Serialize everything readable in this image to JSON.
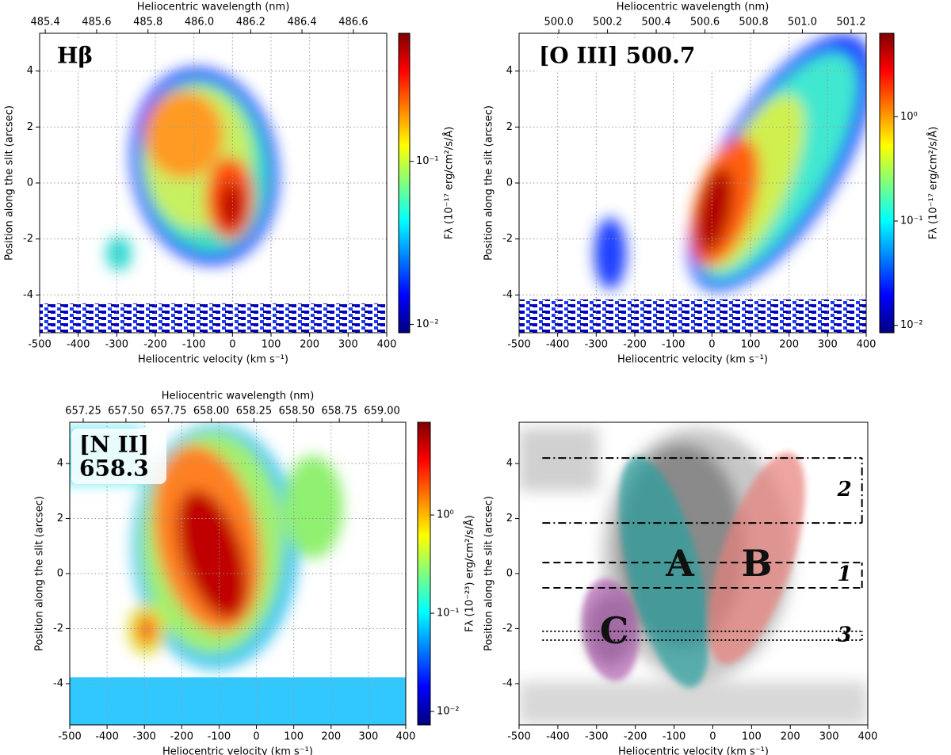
{
  "chart_data": [
    {
      "type": "heatmap",
      "annotation": [
        "Hβ"
      ],
      "xlabel": "Heliocentric velocity (km s⁻¹)",
      "ylabel": "Position along the slit (arcsec)",
      "xlim": [
        -500,
        400
      ],
      "xticks": [
        -500,
        -400,
        -300,
        -200,
        -100,
        0,
        100,
        200,
        300,
        400
      ],
      "ylim": [
        -5.35,
        5.35
      ],
      "yticks": [
        -4,
        -2,
        0,
        2,
        4
      ],
      "x2label": "Heliocentric wavelength (nm)",
      "x2lim": [
        485.378,
        486.73
      ],
      "x2ticks": [
        485.4,
        485.6,
        485.8,
        {
          "value": 486.0,
          "label": "486.0"
        },
        486.2,
        486.4,
        486.6
      ],
      "grid": true,
      "colorbar": {
        "label": "Fλ (10⁻¹⁷ erg/cm²/s/Å)",
        "scale": "log",
        "colormap": "jet",
        "lim": [
          0.0089,
          0.61
        ],
        "ticks": [
          {
            "value": 0.01,
            "label": "10⁻²"
          },
          {
            "value": 0.1,
            "label": "10⁻¹"
          }
        ]
      }
    },
    {
      "type": "heatmap",
      "annotation": [
        "[O III] 500.7"
      ],
      "xlabel": "Heliocentric velocity (km s⁻¹)",
      "ylabel": "Position along the slit (arcsec)",
      "xlim": [
        -500,
        400
      ],
      "xticks": [
        -500,
        -400,
        -300,
        -200,
        -100,
        0,
        100,
        200,
        300,
        400
      ],
      "ylim": [
        -5.35,
        5.35
      ],
      "yticks": [
        -4,
        -2,
        0,
        2,
        4
      ],
      "x2label": "Heliocentric wavelength (nm)",
      "x2lim": [
        499.837,
        501.262
      ],
      "x2ticks": [
        {
          "value": 500.0,
          "label": "500.0"
        },
        500.2,
        500.4,
        500.6,
        500.8,
        {
          "value": 501.0,
          "label": "501.0"
        },
        501.2
      ],
      "grid": true,
      "colorbar": {
        "label": "Fλ (10⁻¹⁷ erg/cm²/s/Å)",
        "scale": "log",
        "colormap": "jet",
        "lim": [
          0.0085,
          6.3
        ],
        "ticks": [
          {
            "value": 0.01,
            "label": "10⁻²"
          },
          {
            "value": 0.1,
            "label": "10⁻¹"
          },
          {
            "value": 1,
            "label": "10⁰"
          }
        ]
      }
    },
    {
      "type": "heatmap",
      "annotation": [
        "[N II]",
        "658.3"
      ],
      "xlabel": "Heliocentric velocity (km s⁻¹)",
      "ylabel": "Position along the slit (arcsec)",
      "xlim": [
        -500,
        400
      ],
      "xticks": [
        -500,
        -400,
        -300,
        -200,
        -100,
        0,
        100,
        200,
        300,
        400
      ],
      "ylim": [
        -5.5,
        5.5
      ],
      "yticks": [
        -4,
        -2,
        0,
        2,
        4
      ],
      "x2label": "Heliocentric wavelength (nm)",
      "x2lim": [
        657.171,
        659.139
      ],
      "x2ticks": [
        657.25,
        {
          "value": 657.5,
          "label": "657.50"
        },
        657.75,
        {
          "value": 658.0,
          "label": "658.00"
        },
        658.25,
        {
          "value": 658.5,
          "label": "658.50"
        },
        658.75,
        {
          "value": 659.0,
          "label": "659.00"
        }
      ],
      "grid": true,
      "colorbar": {
        "label": "Fλ (10⁻²³) erg/cm²/s/Å)",
        "scale": "log",
        "colormap": "jet",
        "lim": [
          0.0073,
          8.8
        ],
        "ticks": [
          {
            "value": 0.01,
            "label": "10⁻²"
          },
          {
            "value": 0.1,
            "label": "10⁻¹"
          },
          {
            "value": 1,
            "label": "10⁰"
          }
        ]
      }
    },
    {
      "type": "heatmap",
      "xlabel": "Heliocentric velocity (km s⁻¹)",
      "ylabel": "Position along the slit (arcsec)",
      "xlim": [
        -500,
        400
      ],
      "xticks": [
        -500,
        -400,
        -300,
        -200,
        -100,
        0,
        100,
        200,
        300,
        400
      ],
      "ylim": [
        -5.5,
        5.5
      ],
      "yticks": [
        -4,
        -2,
        0,
        2,
        4
      ],
      "grid": false,
      "colormap": "gray",
      "components": [
        "A",
        "B",
        "C"
      ],
      "regions": [
        {
          "label": "1",
          "style": "dashed",
          "x": [
            -440,
            385
          ],
          "y": [
            -0.52,
            0.4
          ]
        },
        {
          "label": "2",
          "style": "dashdot",
          "x": [
            -440,
            385
          ],
          "y": [
            1.84,
            4.2
          ]
        },
        {
          "label": "3",
          "style": "dotted",
          "x": [
            -440,
            385
          ],
          "y": [
            -2.42,
            -2.1
          ]
        }
      ]
    }
  ]
}
